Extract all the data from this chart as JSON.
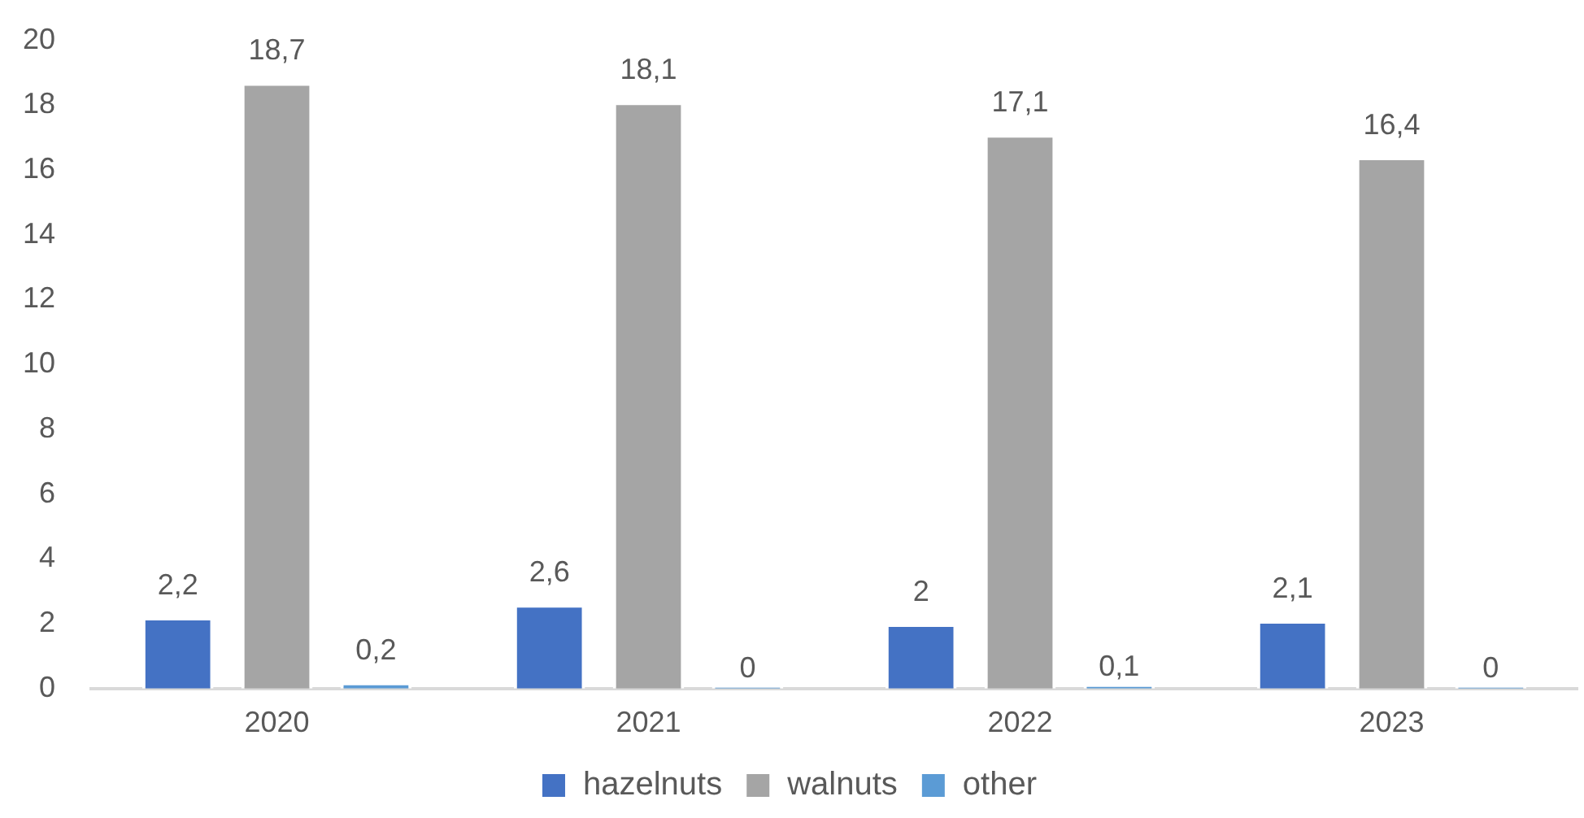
{
  "chart_data": {
    "type": "bar",
    "categories": [
      "2020",
      "2021",
      "2022",
      "2023"
    ],
    "series": [
      {
        "name": "hazelnuts",
        "color": "#4472c4",
        "values": [
          2.2,
          2.6,
          2,
          2.1
        ],
        "value_labels": [
          "2,2",
          "2,6",
          "2",
          "2,1"
        ]
      },
      {
        "name": "walnuts",
        "color": "#a5a5a5",
        "values": [
          18.7,
          18.1,
          17.1,
          16.4
        ],
        "value_labels": [
          "18,7",
          "18,1",
          "17,1",
          "16,4"
        ]
      },
      {
        "name": "other",
        "color": "#5b9bd5",
        "values": [
          0.2,
          0,
          0.1,
          0
        ],
        "value_labels": [
          "0,2",
          "0",
          "0,1",
          "0"
        ]
      }
    ],
    "ylim": [
      0,
      20
    ],
    "yticks": [
      0,
      2,
      4,
      6,
      8,
      10,
      12,
      14,
      16,
      18,
      20
    ],
    "grid": false,
    "legend": "bottom"
  }
}
